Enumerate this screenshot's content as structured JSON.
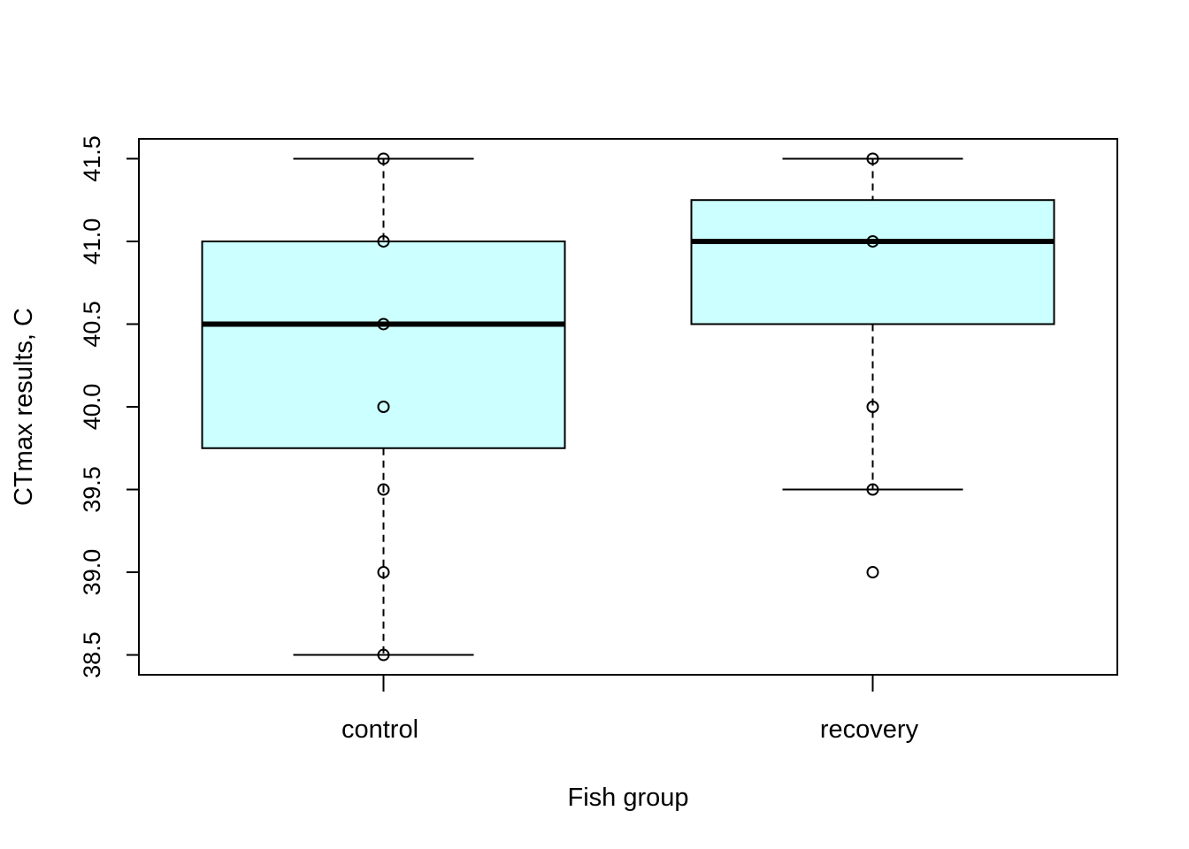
{
  "chart_data": {
    "type": "box",
    "xlabel": "Fish group",
    "ylabel": "CTmax results, C",
    "ylim": [
      38.38,
      41.62
    ],
    "yticks": [
      38.5,
      39.0,
      39.5,
      40.0,
      40.5,
      41.0,
      41.5
    ],
    "ytick_labels": [
      "38.5",
      "39.0",
      "39.5",
      "40.0",
      "40.5",
      "41.0",
      "41.5"
    ],
    "categories": [
      "control",
      "recovery"
    ],
    "boxes": [
      {
        "group": "control",
        "whisker_low": 38.5,
        "q1": 39.75,
        "median": 40.5,
        "q3": 41.0,
        "whisker_high": 41.5
      },
      {
        "group": "recovery",
        "whisker_low": 39.5,
        "q1": 40.5,
        "median": 41.0,
        "q3": 41.25,
        "whisker_high": 41.5
      }
    ],
    "points": [
      {
        "group": "control",
        "values": [
          41.5,
          41.0,
          40.5,
          40.0,
          39.5,
          39.0,
          38.5
        ]
      },
      {
        "group": "recovery",
        "values": [
          41.5,
          41.0,
          40.0,
          39.5,
          39.0
        ]
      }
    ],
    "box_fill": "#ccffff",
    "grid": false,
    "legend": "none"
  }
}
